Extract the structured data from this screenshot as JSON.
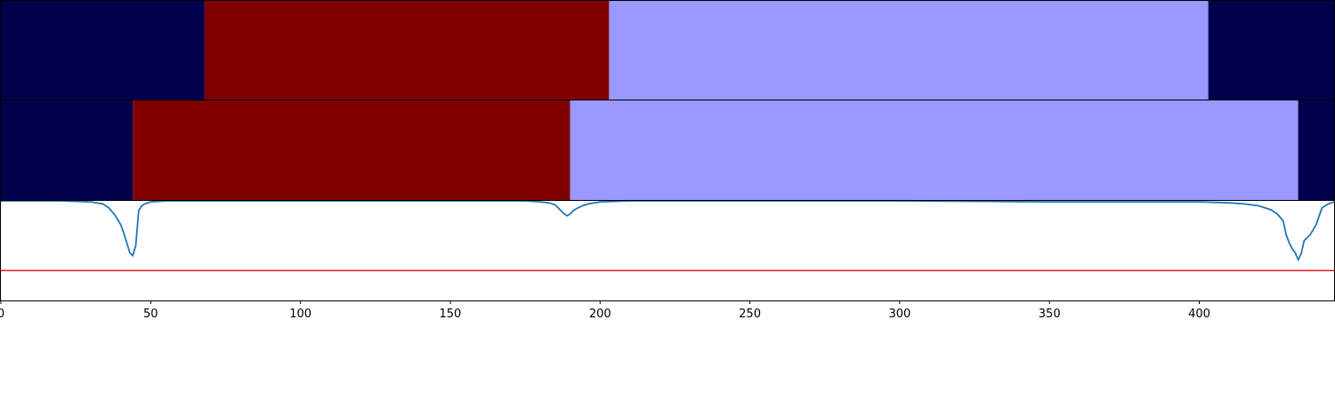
{
  "chart_data": [
    {
      "type": "heatmap",
      "xlim": [
        0,
        445
      ],
      "segments": [
        {
          "start": 0,
          "end": 68,
          "label_index": 0,
          "color": "#00004c"
        },
        {
          "start": 68,
          "end": 203,
          "label_index": 1,
          "color": "#800000"
        },
        {
          "start": 203,
          "end": 403,
          "label_index": 2,
          "color": "#9999ff"
        },
        {
          "start": 403,
          "end": 445,
          "label_index": 0,
          "color": "#00004c"
        }
      ]
    },
    {
      "type": "heatmap",
      "xlim": [
        0,
        445
      ],
      "segments": [
        {
          "start": 0,
          "end": 44,
          "label_index": 0,
          "color": "#00004c"
        },
        {
          "start": 44,
          "end": 190,
          "label_index": 1,
          "color": "#800000"
        },
        {
          "start": 190,
          "end": 433,
          "label_index": 2,
          "color": "#9999ff"
        },
        {
          "start": 433,
          "end": 445,
          "label_index": 0,
          "color": "#00004c"
        }
      ]
    },
    {
      "type": "line",
      "xlim": [
        0,
        445
      ],
      "ylim": [
        0,
        1
      ],
      "line_color": "#1f77b4",
      "threshold": 0.3,
      "threshold_color": "#e31a1c",
      "x": [
        0,
        20,
        30,
        34,
        36,
        38,
        40,
        41,
        42,
        43,
        44,
        45,
        46,
        47,
        48,
        50,
        55,
        60,
        80,
        100,
        150,
        175,
        180,
        183,
        185,
        186,
        187,
        188,
        189,
        190,
        191,
        192,
        194,
        196,
        200,
        210,
        250,
        300,
        350,
        380,
        400,
        410,
        415,
        420,
        424,
        426,
        428,
        429,
        430,
        431,
        432,
        433,
        434,
        435,
        437,
        439,
        440,
        441,
        443,
        445
      ],
      "y": [
        1.0,
        1.0,
        0.99,
        0.97,
        0.93,
        0.86,
        0.76,
        0.68,
        0.58,
        0.48,
        0.45,
        0.55,
        0.9,
        0.95,
        0.97,
        0.99,
        1.0,
        1.0,
        1.0,
        1.0,
        1.0,
        1.0,
        0.99,
        0.98,
        0.96,
        0.93,
        0.9,
        0.87,
        0.85,
        0.87,
        0.9,
        0.92,
        0.95,
        0.97,
        0.99,
        1.0,
        1.0,
        1.0,
        0.99,
        0.99,
        0.99,
        0.98,
        0.97,
        0.95,
        0.91,
        0.87,
        0.8,
        0.66,
        0.58,
        0.52,
        0.48,
        0.41,
        0.47,
        0.6,
        0.66,
        0.76,
        0.85,
        0.93,
        0.97,
        0.99
      ],
      "xticks": [
        0,
        50,
        100,
        150,
        200,
        250,
        300,
        350,
        400
      ],
      "xtick_labels": [
        "0",
        "50",
        "100",
        "150",
        "200",
        "250",
        "300",
        "350",
        "400"
      ]
    }
  ]
}
